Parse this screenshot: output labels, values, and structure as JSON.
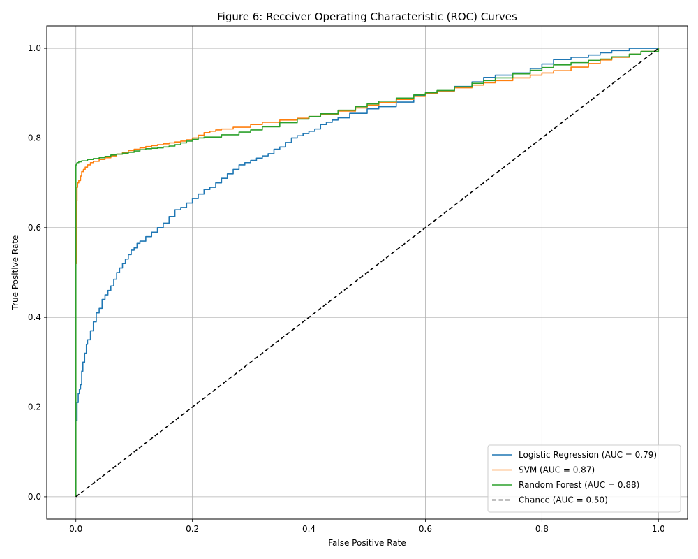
{
  "chart_data": {
    "type": "line",
    "title": "Figure 6: Receiver Operating Characteristic (ROC) Curves",
    "xlabel": "False Positive Rate",
    "ylabel": "True Positive Rate",
    "xlim": [
      -0.05,
      1.05
    ],
    "ylim": [
      -0.05,
      1.05
    ],
    "xticks": [
      0.0,
      0.2,
      0.4,
      0.6,
      0.8,
      1.0
    ],
    "yticks": [
      0.0,
      0.2,
      0.4,
      0.6,
      0.8,
      1.0
    ],
    "xtick_labels": [
      "0.0",
      "0.2",
      "0.4",
      "0.6",
      "0.8",
      "1.0"
    ],
    "ytick_labels": [
      "0.0",
      "0.2",
      "0.4",
      "0.6",
      "0.8",
      "1.0"
    ],
    "grid": true,
    "legend_position": "lower-right",
    "series": [
      {
        "name": "Logistic Regression (AUC = 0.79)",
        "color": "#1f77b4",
        "dash": "solid",
        "x": [
          0.0,
          0.0,
          0.002,
          0.004,
          0.006,
          0.008,
          0.01,
          0.012,
          0.015,
          0.018,
          0.02,
          0.025,
          0.03,
          0.035,
          0.04,
          0.045,
          0.05,
          0.055,
          0.06,
          0.065,
          0.07,
          0.075,
          0.08,
          0.085,
          0.09,
          0.095,
          0.1,
          0.105,
          0.11,
          0.12,
          0.13,
          0.14,
          0.15,
          0.16,
          0.17,
          0.18,
          0.19,
          0.2,
          0.21,
          0.22,
          0.23,
          0.24,
          0.25,
          0.26,
          0.27,
          0.28,
          0.29,
          0.3,
          0.31,
          0.32,
          0.33,
          0.34,
          0.35,
          0.36,
          0.37,
          0.38,
          0.39,
          0.4,
          0.41,
          0.42,
          0.43,
          0.44,
          0.45,
          0.47,
          0.5,
          0.52,
          0.55,
          0.58,
          0.6,
          0.62,
          0.65,
          0.68,
          0.7,
          0.72,
          0.75,
          0.78,
          0.8,
          0.82,
          0.85,
          0.88,
          0.9,
          0.92,
          0.95,
          0.97,
          1.0
        ],
        "y": [
          0.0,
          0.17,
          0.21,
          0.23,
          0.24,
          0.25,
          0.28,
          0.3,
          0.32,
          0.34,
          0.35,
          0.37,
          0.39,
          0.41,
          0.42,
          0.44,
          0.45,
          0.46,
          0.47,
          0.485,
          0.5,
          0.51,
          0.52,
          0.53,
          0.54,
          0.55,
          0.555,
          0.565,
          0.57,
          0.58,
          0.59,
          0.6,
          0.61,
          0.625,
          0.64,
          0.645,
          0.655,
          0.665,
          0.675,
          0.685,
          0.69,
          0.7,
          0.71,
          0.72,
          0.73,
          0.74,
          0.745,
          0.75,
          0.755,
          0.76,
          0.765,
          0.775,
          0.78,
          0.79,
          0.8,
          0.805,
          0.81,
          0.815,
          0.82,
          0.83,
          0.835,
          0.84,
          0.845,
          0.855,
          0.865,
          0.87,
          0.88,
          0.895,
          0.9,
          0.905,
          0.915,
          0.925,
          0.935,
          0.94,
          0.945,
          0.955,
          0.965,
          0.975,
          0.98,
          0.985,
          0.99,
          0.995,
          1.0,
          1.0,
          1.0
        ]
      },
      {
        "name": "SVM (AUC = 0.87)",
        "color": "#ff7f0e",
        "dash": "solid",
        "x": [
          0.0,
          0.0,
          0.001,
          0.002,
          0.003,
          0.005,
          0.008,
          0.01,
          0.013,
          0.016,
          0.02,
          0.025,
          0.03,
          0.04,
          0.05,
          0.06,
          0.07,
          0.08,
          0.09,
          0.1,
          0.11,
          0.12,
          0.13,
          0.14,
          0.15,
          0.16,
          0.17,
          0.18,
          0.19,
          0.2,
          0.21,
          0.22,
          0.23,
          0.24,
          0.25,
          0.27,
          0.3,
          0.32,
          0.35,
          0.38,
          0.4,
          0.42,
          0.45,
          0.48,
          0.5,
          0.52,
          0.55,
          0.58,
          0.6,
          0.62,
          0.65,
          0.68,
          0.7,
          0.72,
          0.75,
          0.78,
          0.8,
          0.82,
          0.85,
          0.88,
          0.9,
          0.92,
          0.95,
          0.97,
          1.0
        ],
        "y": [
          0.0,
          0.52,
          0.66,
          0.69,
          0.7,
          0.705,
          0.715,
          0.725,
          0.73,
          0.735,
          0.74,
          0.745,
          0.748,
          0.752,
          0.756,
          0.76,
          0.764,
          0.768,
          0.772,
          0.775,
          0.778,
          0.781,
          0.783,
          0.785,
          0.787,
          0.789,
          0.791,
          0.793,
          0.796,
          0.8,
          0.806,
          0.812,
          0.815,
          0.818,
          0.82,
          0.824,
          0.83,
          0.835,
          0.84,
          0.844,
          0.848,
          0.853,
          0.86,
          0.867,
          0.873,
          0.879,
          0.886,
          0.893,
          0.899,
          0.905,
          0.912,
          0.918,
          0.923,
          0.928,
          0.934,
          0.94,
          0.945,
          0.95,
          0.958,
          0.966,
          0.974,
          0.98,
          0.987,
          0.993,
          1.0
        ]
      },
      {
        "name": "Random Forest (AUC = 0.88)",
        "color": "#2ca02c",
        "dash": "solid",
        "x": [
          0.0,
          0.0,
          0.001,
          0.002,
          0.005,
          0.01,
          0.02,
          0.03,
          0.04,
          0.05,
          0.06,
          0.07,
          0.08,
          0.09,
          0.1,
          0.11,
          0.12,
          0.13,
          0.14,
          0.15,
          0.16,
          0.17,
          0.18,
          0.19,
          0.2,
          0.21,
          0.22,
          0.25,
          0.28,
          0.3,
          0.32,
          0.35,
          0.38,
          0.4,
          0.42,
          0.45,
          0.48,
          0.5,
          0.52,
          0.55,
          0.58,
          0.6,
          0.62,
          0.65,
          0.68,
          0.7,
          0.72,
          0.75,
          0.78,
          0.8,
          0.82,
          0.85,
          0.88,
          0.9,
          0.92,
          0.95,
          0.97,
          1.0
        ],
        "y": [
          0.0,
          0.74,
          0.743,
          0.745,
          0.747,
          0.749,
          0.752,
          0.754,
          0.756,
          0.759,
          0.762,
          0.764,
          0.766,
          0.768,
          0.771,
          0.774,
          0.776,
          0.777,
          0.778,
          0.78,
          0.782,
          0.785,
          0.789,
          0.793,
          0.797,
          0.8,
          0.802,
          0.807,
          0.813,
          0.818,
          0.825,
          0.834,
          0.842,
          0.848,
          0.854,
          0.862,
          0.87,
          0.876,
          0.882,
          0.889,
          0.896,
          0.901,
          0.906,
          0.914,
          0.922,
          0.928,
          0.934,
          0.943,
          0.951,
          0.957,
          0.963,
          0.968,
          0.973,
          0.976,
          0.981,
          0.987,
          0.993,
          1.0
        ]
      },
      {
        "name": "Chance (AUC = 0.50)",
        "color": "#000000",
        "dash": "dashed",
        "x": [
          0.0,
          1.0
        ],
        "y": [
          0.0,
          1.0
        ]
      }
    ]
  }
}
